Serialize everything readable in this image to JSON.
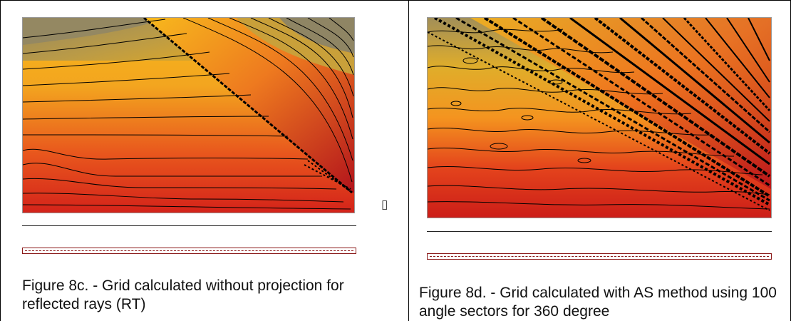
{
  "figures": [
    {
      "id": "8c",
      "caption": "Figure 8c. - Grid calculated without projection for reflected rays (RT)"
    },
    {
      "id": "8d",
      "caption": "Figure 8d. - Grid calculated with AS method using 100 angle sectors for 360 degree"
    }
  ],
  "placeholder_glyph": "▯",
  "colors": {
    "dark_red": "#c71b14",
    "red": "#e23a1f",
    "orange": "#f08a1e",
    "amber": "#f7b21a",
    "gold": "#d9a52a",
    "olive": "#9b8a5e",
    "contour": "#000000",
    "scalebar": "#8b1a1a"
  }
}
